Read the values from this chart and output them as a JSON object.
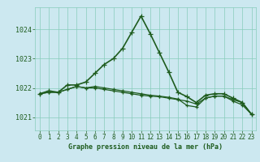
{
  "title": "Graphe pression niveau de la mer (hPa)",
  "background_color": "#cce8f0",
  "grid_color": "#88ccbb",
  "line_color": "#1e5c1e",
  "xlim": [
    -0.5,
    23.5
  ],
  "ylim": [
    1020.55,
    1024.75
  ],
  "yticks": [
    1021,
    1022,
    1023,
    1024
  ],
  "xticks": [
    0,
    1,
    2,
    3,
    4,
    5,
    6,
    7,
    8,
    9,
    10,
    11,
    12,
    13,
    14,
    15,
    16,
    17,
    18,
    19,
    20,
    21,
    22,
    23
  ],
  "series": [
    {
      "x": [
        0,
        1,
        2,
        3,
        4,
        5,
        6,
        7,
        8,
        9,
        10,
        11,
        12,
        13,
        14,
        15,
        16,
        17,
        18,
        19,
        20,
        21,
        22,
        23
      ],
      "y": [
        1021.8,
        1021.9,
        1021.85,
        1022.1,
        1022.1,
        1022.2,
        1022.5,
        1022.8,
        1023.0,
        1023.35,
        1023.9,
        1024.45,
        1023.85,
        1023.2,
        1022.55,
        1021.85,
        1021.7,
        1021.5,
        1021.75,
        1021.8,
        1021.8,
        1021.65,
        1021.5,
        1021.1
      ],
      "marker": "+",
      "linewidth": 1.2,
      "markersize": 4.5
    },
    {
      "x": [
        0,
        1,
        2,
        3,
        4,
        5,
        6,
        7,
        8,
        9,
        10,
        11,
        12,
        13,
        14,
        15,
        16,
        17,
        18,
        19,
        20,
        21,
        22,
        23
      ],
      "y": [
        1021.8,
        1021.85,
        1021.85,
        1021.95,
        1022.05,
        1022.0,
        1022.0,
        1021.95,
        1021.9,
        1021.85,
        1021.8,
        1021.75,
        1021.72,
        1021.7,
        1021.65,
        1021.6,
        1021.55,
        1021.45,
        1021.65,
        1021.72,
        1021.72,
        1021.6,
        1021.5,
        1021.1
      ],
      "marker": "+",
      "linewidth": 0.9,
      "markersize": 3.5
    },
    {
      "x": [
        0,
        1,
        2,
        3,
        4,
        5,
        6,
        7,
        8,
        9,
        10,
        11,
        12,
        13,
        14,
        15,
        16,
        17,
        18,
        19,
        20,
        21,
        22,
        23
      ],
      "y": [
        1021.8,
        1021.85,
        1021.85,
        1021.95,
        1022.05,
        1022.0,
        1022.05,
        1022.0,
        1021.95,
        1021.9,
        1021.85,
        1021.8,
        1021.75,
        1021.72,
        1021.68,
        1021.62,
        1021.4,
        1021.35,
        1021.65,
        1021.72,
        1021.72,
        1021.55,
        1021.42,
        1021.1
      ],
      "marker": "+",
      "linewidth": 0.9,
      "markersize": 3.5
    }
  ]
}
